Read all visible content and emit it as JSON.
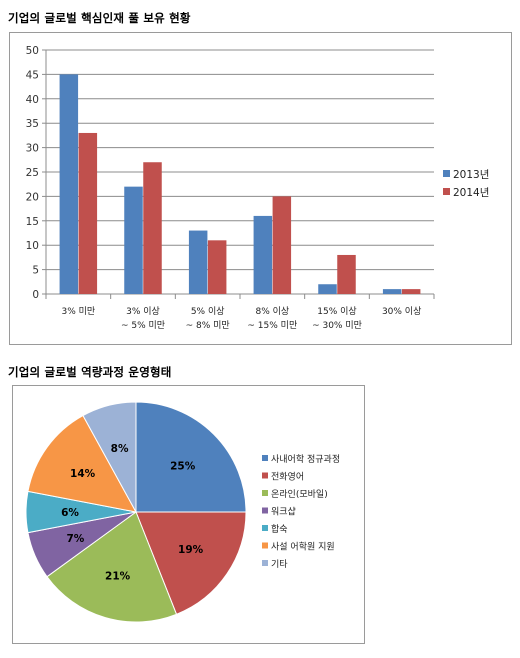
{
  "headings": {
    "bar": "기업의 글로벌 핵심인재 풀 보유 현황",
    "pie": "기업의 글로벌 역량과정 운영형태"
  },
  "chart_data": [
    {
      "type": "bar",
      "categories": [
        [
          "3% 미만"
        ],
        [
          "3% 이상",
          "~ 5% 미만"
        ],
        [
          "5% 이상",
          "~ 8% 미만"
        ],
        [
          "8% 이상",
          "~ 15% 미만"
        ],
        [
          "15% 이상",
          "~ 30% 미만"
        ],
        [
          "30% 이상"
        ]
      ],
      "series": [
        {
          "name": "2013년",
          "color": "#4f81bd",
          "values": [
            45,
            22,
            13,
            16,
            2,
            1
          ]
        },
        {
          "name": "2014년",
          "color": "#c0504d",
          "values": [
            33,
            27,
            11,
            20,
            8,
            1
          ]
        }
      ],
      "ylim": [
        0,
        50
      ],
      "yticks": [
        0,
        5,
        10,
        15,
        20,
        25,
        30,
        35,
        40,
        45,
        50
      ],
      "grid": true,
      "legend": "right"
    },
    {
      "type": "pie",
      "slices": [
        {
          "name": "사내어학 정규과정",
          "value": 25,
          "label": "25%",
          "color": "#4f81bd"
        },
        {
          "name": "전화영어",
          "value": 19,
          "label": "19%",
          "color": "#c0504d"
        },
        {
          "name": "온라인(모바일)",
          "value": 21,
          "label": "21%",
          "color": "#9bbb59"
        },
        {
          "name": "워크샵",
          "value": 7,
          "label": "7%",
          "color": "#8064a2"
        },
        {
          "name": "합숙",
          "value": 6,
          "label": "6%",
          "color": "#4bacc6"
        },
        {
          "name": "사설 어학원 지원",
          "value": 14,
          "label": "14%",
          "color": "#f79646"
        },
        {
          "name": "기타",
          "value": 8,
          "label": "8%",
          "color": "#9cb2d6"
        }
      ],
      "legend": "right"
    }
  ]
}
